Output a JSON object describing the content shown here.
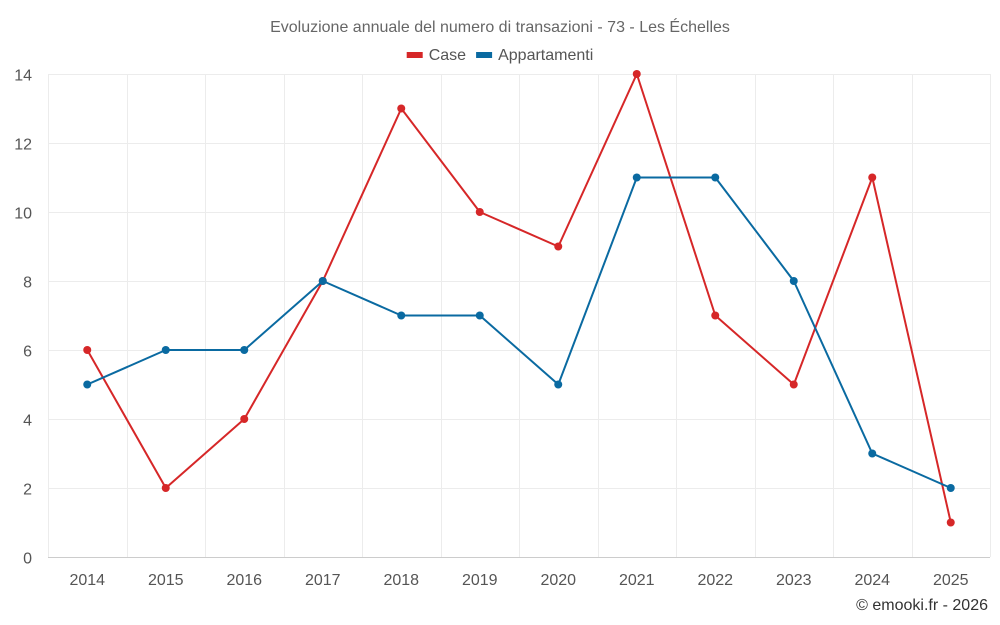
{
  "chart_data": {
    "type": "line",
    "title": "Evoluzione annuale del numero di transazioni - 73 - Les Échelles",
    "categories": [
      "2014",
      "2015",
      "2016",
      "2017",
      "2018",
      "2019",
      "2020",
      "2021",
      "2022",
      "2023",
      "2024",
      "2025"
    ],
    "ylim": [
      0,
      14
    ],
    "yticks": [
      0,
      2,
      4,
      6,
      8,
      10,
      12,
      14
    ],
    "xlabel": "",
    "ylabel": "",
    "grid": true,
    "legend_position": "top-center",
    "series": [
      {
        "name": "Case",
        "color": "#d62728",
        "values": [
          6,
          2,
          4,
          8,
          13,
          10,
          9,
          14,
          7,
          5,
          11,
          1
        ]
      },
      {
        "name": "Appartamenti",
        "color": "#0a6aa1",
        "values": [
          5,
          6,
          6,
          8,
          7,
          7,
          5,
          11,
          11,
          8,
          3,
          2
        ]
      }
    ]
  },
  "credit": "© emooki.fr - 2026"
}
